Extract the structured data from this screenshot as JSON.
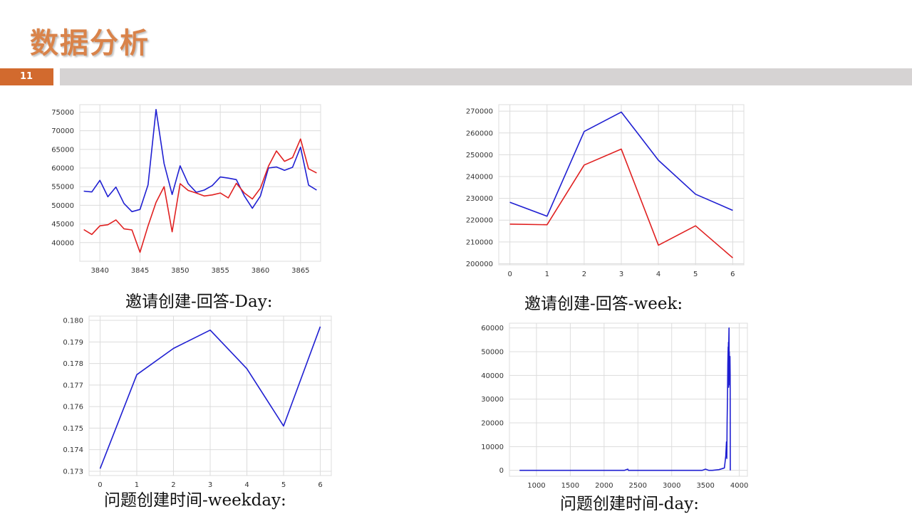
{
  "header": {
    "title": "数据分析",
    "page_number": "11"
  },
  "colors": {
    "accent": "#d26a2e",
    "series_blue": "#1f1fd2",
    "series_red": "#e02020"
  },
  "chart_data": [
    {
      "id": "c1",
      "type": "line",
      "caption": "邀请创建-回答-Day:",
      "xlim": [
        3837.5,
        3867.5
      ],
      "ylim": [
        35000,
        77000
      ],
      "xticks": [
        3840,
        3845,
        3850,
        3855,
        3860,
        3865
      ],
      "yticks": [
        40000,
        45000,
        50000,
        55000,
        60000,
        65000,
        70000,
        75000
      ],
      "series": [
        {
          "color": "#1f1fd2",
          "x": [
            3838,
            3839,
            3840,
            3841,
            3842,
            3843,
            3844,
            3845,
            3846,
            3847,
            3848,
            3849,
            3850,
            3851,
            3852,
            3853,
            3854,
            3855,
            3856,
            3857,
            3858,
            3859,
            3860,
            3861,
            3862,
            3863,
            3864,
            3865,
            3866,
            3867
          ],
          "y": [
            53800,
            53600,
            56700,
            52300,
            54900,
            50500,
            48300,
            48900,
            55500,
            75700,
            61200,
            52900,
            60600,
            55800,
            53500,
            54100,
            55300,
            57600,
            57300,
            56900,
            52500,
            49200,
            52500,
            60000,
            60300,
            59400,
            60200,
            65600,
            55400,
            54100
          ]
        },
        {
          "color": "#e02020",
          "x": [
            3838,
            3839,
            3840,
            3841,
            3842,
            3843,
            3844,
            3845,
            3846,
            3847,
            3848,
            3849,
            3850,
            3851,
            3852,
            3853,
            3854,
            3855,
            3856,
            3857,
            3858,
            3859,
            3860,
            3861,
            3862,
            3863,
            3864,
            3865,
            3866,
            3867
          ],
          "y": [
            43500,
            42200,
            44500,
            44800,
            46100,
            43700,
            43400,
            37400,
            44500,
            50800,
            55000,
            42900,
            55800,
            54000,
            53300,
            52500,
            52800,
            53300,
            52000,
            55900,
            53300,
            51700,
            54600,
            60500,
            64600,
            61800,
            62800,
            67800,
            59800,
            58700
          ]
        }
      ]
    },
    {
      "id": "c2",
      "type": "line",
      "caption": "邀请创建-回答-week:",
      "xlim": [
        -0.3,
        6.3
      ],
      "ylim": [
        199500,
        273000
      ],
      "xticks": [
        0,
        1,
        2,
        3,
        4,
        5,
        6
      ],
      "yticks": [
        200000,
        210000,
        220000,
        230000,
        240000,
        250000,
        260000,
        270000
      ],
      "series": [
        {
          "color": "#1f1fd2",
          "x": [
            0,
            1,
            2,
            3,
            4,
            5,
            6
          ],
          "y": [
            228200,
            221800,
            260700,
            269600,
            247500,
            231900,
            224500
          ]
        },
        {
          "color": "#e02020",
          "x": [
            0,
            1,
            2,
            3,
            4,
            5,
            6
          ],
          "y": [
            218200,
            217900,
            245300,
            252600,
            208500,
            217400,
            202700
          ]
        }
      ]
    },
    {
      "id": "c3",
      "type": "line",
      "caption": "问题创建时间-weekday:",
      "xlim": [
        -0.3,
        6.3
      ],
      "ylim": [
        0.1728,
        0.1802
      ],
      "xticks": [
        0,
        1,
        2,
        3,
        4,
        5,
        6
      ],
      "yticks": [
        0.173,
        0.174,
        0.175,
        0.176,
        0.177,
        0.178,
        0.179,
        0.18
      ],
      "series": [
        {
          "color": "#1f1fd2",
          "x": [
            0,
            1,
            2,
            3,
            4,
            5,
            6
          ],
          "y": [
            0.17312,
            0.17748,
            0.1787,
            0.17955,
            0.17776,
            0.1751,
            0.17971
          ]
        }
      ]
    },
    {
      "id": "c4",
      "type": "line",
      "caption": "问题创建时间-day:",
      "xlim": [
        600,
        4120
      ],
      "ylim": [
        -2500,
        62000
      ],
      "xticks": [
        1000,
        1500,
        2000,
        2500,
        3000,
        3500,
        4000
      ],
      "yticks": [
        0,
        10000,
        20000,
        30000,
        40000,
        50000,
        60000
      ],
      "series": [
        {
          "color": "#1f1fd2",
          "x": [
            750,
            1500,
            2300,
            2350,
            2360,
            2370,
            3000,
            3450,
            3500,
            3550,
            3600,
            3700,
            3780,
            3800,
            3810,
            3815,
            3820,
            3825,
            3830,
            3835,
            3838,
            3840,
            3842,
            3845,
            3848,
            3850,
            3852,
            3855,
            3858,
            3860,
            3862,
            3865,
            3867
          ],
          "y": [
            0,
            0,
            0,
            500,
            0,
            0,
            0,
            0,
            500,
            0,
            0,
            300,
            1000,
            6000,
            12000,
            5000,
            20000,
            30000,
            45000,
            52000,
            48000,
            54000,
            35000,
            55000,
            60000,
            40000,
            50000,
            38000,
            45000,
            36000,
            48000,
            40000,
            0
          ]
        }
      ]
    }
  ]
}
